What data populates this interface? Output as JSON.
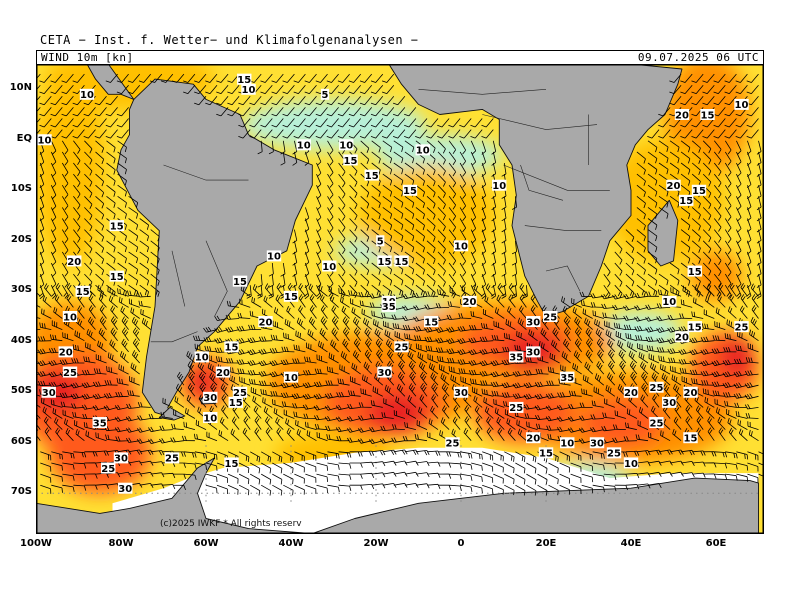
{
  "header": {
    "title": "CETA − Inst. f. Wetter− und Klimafolgenanalysen −",
    "field": "WIND 10m [kn]",
    "datetime": "09.07.2025 06 UTC"
  },
  "copyright": "(c)2025 IWKF * All rights reserv",
  "axes": {
    "lat_labels": [
      "10N",
      "EQ",
      "10S",
      "20S",
      "30S",
      "40S",
      "50S",
      "60S",
      "70S"
    ],
    "lon_labels": [
      "100W",
      "80W",
      "60W",
      "40W",
      "20W",
      "0",
      "20E",
      "40E",
      "60E"
    ]
  },
  "colors": {
    "land": "#a9a9a9",
    "ice": "#ffffff",
    "speed_0_5": "#b8f0d8",
    "speed_5_10": "#ffff99",
    "speed_10_15": "#ffe033",
    "speed_15_20": "#ffc000",
    "speed_20_25": "#ff9000",
    "speed_25_30": "#ff5a1a",
    "speed_30_35": "#e82020",
    "speed_35_plus": "#c0102a"
  },
  "speed_labels": [
    {
      "lon": -88,
      "lat": 9,
      "text": "10"
    },
    {
      "lon": -98,
      "lat": 0,
      "text": "10"
    },
    {
      "lon": -51,
      "lat": 12,
      "text": "15"
    },
    {
      "lon": -50,
      "lat": 10,
      "text": "10"
    },
    {
      "lon": -32,
      "lat": 9,
      "text": "5"
    },
    {
      "lon": -37,
      "lat": -1,
      "text": "10"
    },
    {
      "lon": -27,
      "lat": -1,
      "text": "10"
    },
    {
      "lon": -26,
      "lat": -4,
      "text": "15"
    },
    {
      "lon": -21,
      "lat": -7,
      "text": "15"
    },
    {
      "lon": -12,
      "lat": -10,
      "text": "15"
    },
    {
      "lon": -9,
      "lat": -2,
      "text": "10"
    },
    {
      "lon": 9,
      "lat": -9,
      "text": "10"
    },
    {
      "lon": -81,
      "lat": -17,
      "text": "15"
    },
    {
      "lon": -91,
      "lat": -24,
      "text": "20"
    },
    {
      "lon": -81,
      "lat": -27,
      "text": "15"
    },
    {
      "lon": -89,
      "lat": -30,
      "text": "15"
    },
    {
      "lon": -92,
      "lat": -35,
      "text": "10"
    },
    {
      "lon": -93,
      "lat": -42,
      "text": "20"
    },
    {
      "lon": -92,
      "lat": -46,
      "text": "25"
    },
    {
      "lon": -97,
      "lat": -50,
      "text": "30"
    },
    {
      "lon": -85,
      "lat": -56,
      "text": "35"
    },
    {
      "lon": -80,
      "lat": -63,
      "text": "30"
    },
    {
      "lon": -83,
      "lat": -65,
      "text": "25"
    },
    {
      "lon": -68,
      "lat": -63,
      "text": "25"
    },
    {
      "lon": -79,
      "lat": -69,
      "text": "30"
    },
    {
      "lon": -52,
      "lat": -28,
      "text": "15"
    },
    {
      "lon": -44,
      "lat": -23,
      "text": "10"
    },
    {
      "lon": -40,
      "lat": -31,
      "text": "15"
    },
    {
      "lon": -46,
      "lat": -36,
      "text": "20"
    },
    {
      "lon": -54,
      "lat": -41,
      "text": "15"
    },
    {
      "lon": -61,
      "lat": -43,
      "text": "10"
    },
    {
      "lon": -56,
      "lat": -46,
      "text": "20"
    },
    {
      "lon": -40,
      "lat": -47,
      "text": "10"
    },
    {
      "lon": -59,
      "lat": -51,
      "text": "30"
    },
    {
      "lon": -52,
      "lat": -50,
      "text": "25"
    },
    {
      "lon": -53,
      "lat": -52,
      "text": "15"
    },
    {
      "lon": -59,
      "lat": -55,
      "text": "10"
    },
    {
      "lon": -54,
      "lat": -64,
      "text": "15"
    },
    {
      "lon": -31,
      "lat": -25,
      "text": "10"
    },
    {
      "lon": -19,
      "lat": -20,
      "text": "5"
    },
    {
      "lon": -18,
      "lat": -24,
      "text": "15"
    },
    {
      "lon": -14,
      "lat": -24,
      "text": "15"
    },
    {
      "lon": 0,
      "lat": -21,
      "text": "10"
    },
    {
      "lon": -17,
      "lat": -32,
      "text": "10"
    },
    {
      "lon": -17,
      "lat": -33,
      "text": "35"
    },
    {
      "lon": -7,
      "lat": -36,
      "text": "15"
    },
    {
      "lon": 2,
      "lat": -32,
      "text": "20"
    },
    {
      "lon": -14,
      "lat": -41,
      "text": "25"
    },
    {
      "lon": -18,
      "lat": -46,
      "text": "30"
    },
    {
      "lon": 0,
      "lat": -50,
      "text": "30"
    },
    {
      "lon": 13,
      "lat": -53,
      "text": "25"
    },
    {
      "lon": 17,
      "lat": -36,
      "text": "30"
    },
    {
      "lon": 21,
      "lat": -35,
      "text": "25"
    },
    {
      "lon": 13,
      "lat": -43,
      "text": "35"
    },
    {
      "lon": 17,
      "lat": -42,
      "text": "30"
    },
    {
      "lon": 25,
      "lat": -47,
      "text": "35"
    },
    {
      "lon": -2,
      "lat": -60,
      "text": "25"
    },
    {
      "lon": 17,
      "lat": -59,
      "text": "20"
    },
    {
      "lon": 25,
      "lat": -60,
      "text": "10"
    },
    {
      "lon": 32,
      "lat": -60,
      "text": "30"
    },
    {
      "lon": 36,
      "lat": -62,
      "text": "25"
    },
    {
      "lon": 20,
      "lat": -62,
      "text": "15"
    },
    {
      "lon": 40,
      "lat": -50,
      "text": "20"
    },
    {
      "lon": 46,
      "lat": -49,
      "text": "25"
    },
    {
      "lon": 46,
      "lat": -56,
      "text": "25"
    },
    {
      "lon": 49,
      "lat": -52,
      "text": "30"
    },
    {
      "lon": 54,
      "lat": -50,
      "text": "20"
    },
    {
      "lon": 54,
      "lat": -59,
      "text": "15"
    },
    {
      "lon": 40,
      "lat": -64,
      "text": "10"
    },
    {
      "lon": 49,
      "lat": -32,
      "text": "10"
    },
    {
      "lon": 55,
      "lat": -37,
      "text": "15"
    },
    {
      "lon": 52,
      "lat": -39,
      "text": "20"
    },
    {
      "lon": 66,
      "lat": -37,
      "text": "25"
    },
    {
      "lon": 55,
      "lat": -26,
      "text": "15"
    },
    {
      "lon": 52,
      "lat": 5,
      "text": "20"
    },
    {
      "lon": 58,
      "lat": 5,
      "text": "15"
    },
    {
      "lon": 66,
      "lat": 7,
      "text": "10"
    },
    {
      "lon": 53,
      "lat": -12,
      "text": "15"
    },
    {
      "lon": 50,
      "lat": -9,
      "text": "20"
    },
    {
      "lon": 56,
      "lat": -10,
      "text": "15"
    }
  ]
}
